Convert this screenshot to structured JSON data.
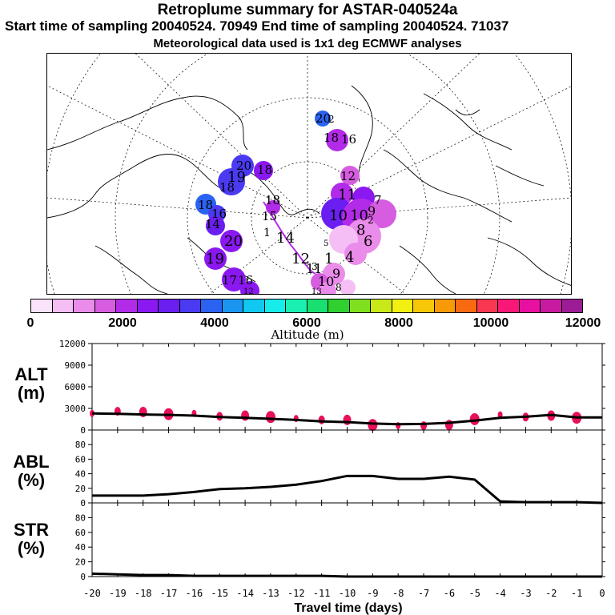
{
  "header": {
    "title": "Retroplume summary for ASTAR-040524a",
    "sampling_line": "Start time of sampling 20040524. 70949     End time of sampling 20040524. 71037",
    "met_line": "Meteorological data used is 1x1 deg ECMWF analyses"
  },
  "colorbar": {
    "title": "Altitude (m)",
    "tick_labels": [
      "0",
      "2000",
      "4000",
      "6000",
      "8000",
      "10000",
      "12000"
    ],
    "colors": [
      "#fbe3fb",
      "#f5bff5",
      "#ea8cea",
      "#d65ce0",
      "#b22be8",
      "#8a18f0",
      "#6a1ef0",
      "#4a3af2",
      "#2b62f2",
      "#1a96f0",
      "#10c8f0",
      "#16ecea",
      "#1af0b0",
      "#18e070",
      "#30d030",
      "#80e020",
      "#c8e818",
      "#f2f010",
      "#f8c808",
      "#f89a08",
      "#f86a10",
      "#f83850",
      "#f81878",
      "#e810a0",
      "#c81aa0",
      "#9c1c96"
    ]
  },
  "map": {
    "plume_labels": [
      "20",
      "2",
      "18",
      "16",
      "20",
      "19",
      "18",
      "18",
      "18",
      "16",
      "14",
      "20",
      "19",
      "17",
      "16",
      "18",
      "15",
      "14",
      "12",
      "12",
      "11",
      "10",
      "10",
      "9",
      "8",
      "7",
      "6",
      "5",
      "4",
      "3",
      "2",
      "1",
      "11",
      "10",
      "9",
      "8",
      "13",
      "12",
      "1"
    ]
  },
  "chart_data": [
    {
      "type": "line",
      "name": "ALT",
      "ylabel": "ALT\n(m)",
      "yticks": [
        0,
        3000,
        6000,
        9000,
        12000
      ],
      "ylim": [
        0,
        12000
      ],
      "x": [
        -20,
        -19,
        -18,
        -17,
        -16,
        -15,
        -14,
        -13,
        -12,
        -11,
        -10,
        -9,
        -8,
        -7,
        -6,
        -5,
        -4,
        -3,
        -2,
        -1,
        0
      ],
      "values": [
        2300,
        2250,
        2150,
        2100,
        2000,
        1800,
        1700,
        1550,
        1400,
        1200,
        1100,
        900,
        800,
        850,
        1000,
        1300,
        1700,
        1850,
        2100,
        1750,
        1750
      ],
      "points_x": [
        -20,
        -19,
        -18,
        -17,
        -16,
        -15,
        -14,
        -13,
        -12,
        -11,
        -10,
        -9,
        -8,
        -7,
        -6,
        -5,
        -4,
        -3,
        -2,
        -1
      ],
      "points_y": [
        2300,
        2600,
        2500,
        2200,
        2300,
        1900,
        2000,
        1800,
        1600,
        1400,
        1400,
        700,
        600,
        600,
        700,
        1500,
        2100,
        1800,
        2000,
        1700
      ]
    },
    {
      "type": "line",
      "name": "ABL",
      "ylabel": "ABL\n(%)",
      "yticks": [
        0,
        20,
        40,
        60,
        80
      ],
      "ylim": [
        0,
        100
      ],
      "x": [
        -20,
        -19,
        -18,
        -17,
        -16,
        -15,
        -14,
        -13,
        -12,
        -11,
        -10,
        -9,
        -8,
        -7,
        -6,
        -5,
        -4,
        -3,
        -2,
        -1,
        0
      ],
      "values": [
        10,
        10,
        10,
        12,
        15,
        19,
        20,
        22,
        25,
        30,
        37,
        37,
        33,
        33,
        36,
        32,
        2,
        1,
        1,
        1,
        0
      ]
    },
    {
      "type": "line",
      "name": "STR",
      "ylabel": "STR\n(%)",
      "yticks": [
        0,
        20,
        40,
        60,
        80
      ],
      "ylim": [
        0,
        100
      ],
      "x": [
        -20,
        -19,
        -18,
        -17,
        -16,
        -15,
        -14,
        -13,
        -12,
        -11,
        -10,
        -9,
        -8,
        -7,
        -6,
        -5,
        -4,
        -3,
        -2,
        -1,
        0
      ],
      "values": [
        4,
        3,
        2,
        2,
        1,
        1,
        1,
        1,
        1,
        1,
        0,
        0,
        0,
        0,
        0,
        0,
        0,
        0,
        0,
        0,
        0
      ]
    }
  ],
  "xaxis": {
    "tick_labels": [
      "-20",
      "-19",
      "-18",
      "-17",
      "-16",
      "-15",
      "-14",
      "-13",
      "-12",
      "-11",
      "-10",
      "-9",
      "-8",
      "-7",
      "-6",
      "-5",
      "-4",
      "-3",
      "-2",
      "-1",
      "0"
    ],
    "xlabel": "Travel time (days)"
  }
}
